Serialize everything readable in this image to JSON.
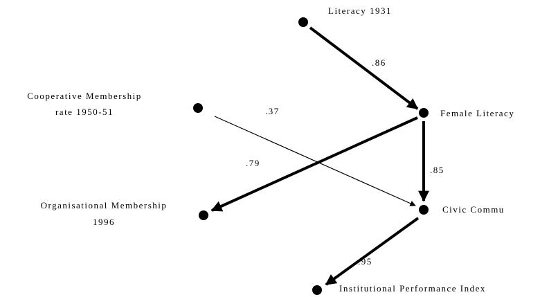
{
  "nodes": [
    {
      "label": [
        "Literacy 1931"
      ]
    },
    {
      "label": [
        "Cooperative Membership",
        "rate 1950-51"
      ]
    },
    {
      "label": [
        "Female Literacy"
      ]
    },
    {
      "label": [
        "Organisational Membership",
        "1996"
      ]
    },
    {
      "label": [
        "Civic Commu"
      ]
    },
    {
      "label": [
        "Institutional Performance Index"
      ]
    }
  ],
  "edges": [
    {
      "coefficient": ".86"
    },
    {
      "coefficient": ".37"
    },
    {
      "coefficient": ".79"
    },
    {
      "coefficient": ".85"
    },
    {
      "coefficient": ".95"
    }
  ]
}
